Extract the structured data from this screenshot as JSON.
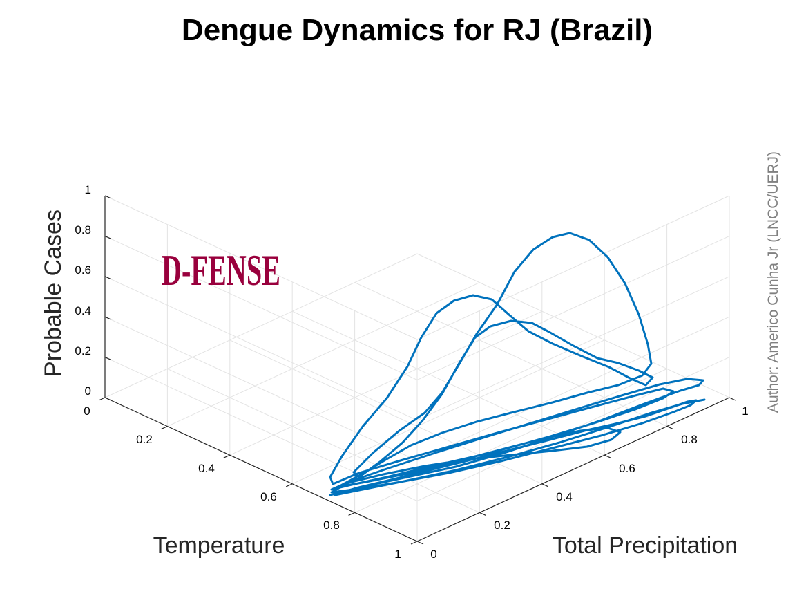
{
  "chart_data": {
    "type": "line",
    "projection": "3d",
    "title": "Dengue Dynamics for RJ (Brazil)",
    "xlabel": "Total Precipitation",
    "ylabel": "Temperature",
    "zlabel": "Probable Cases",
    "xlim": [
      0,
      1
    ],
    "ylim": [
      0,
      1
    ],
    "zlim": [
      0,
      1
    ],
    "xticks": [
      "0",
      "0.2",
      "0.4",
      "0.6",
      "0.8",
      "1"
    ],
    "yticks": [
      "0",
      "0.2",
      "0.4",
      "0.6",
      "0.8",
      "1"
    ],
    "zticks": [
      "0",
      "0.2",
      "0.4",
      "0.6",
      "0.8",
      "1"
    ],
    "grid": true,
    "series_color": "#0072BD",
    "logo": "D-FENSE",
    "logo_color": "#99003D",
    "author": "Author: Americo Cunha Jr (LNCC/UERJ)",
    "author_color": "#808080"
  }
}
